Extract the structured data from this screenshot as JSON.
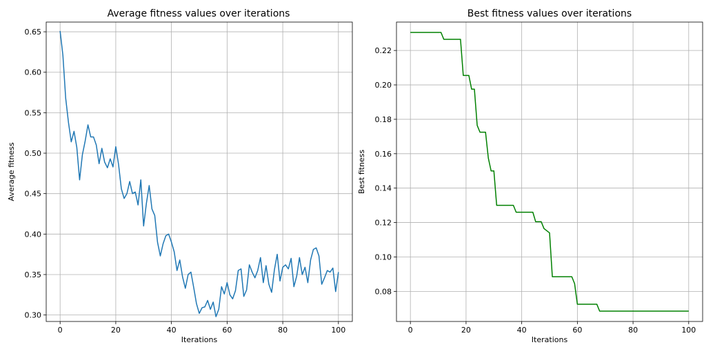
{
  "chart_data": [
    {
      "type": "line",
      "title": "Average fitness values over iterations",
      "xlabel": "Iterations",
      "ylabel": "Average fitness",
      "xlim": [
        -5,
        105
      ],
      "ylim": [
        0.292,
        0.662
      ],
      "xticks": [
        0,
        20,
        40,
        60,
        80,
        100
      ],
      "yticks": [
        0.3,
        0.35,
        0.4,
        0.45,
        0.5,
        0.55,
        0.6,
        0.65
      ],
      "grid": true,
      "color": "#1f77b4",
      "series": [
        {
          "x": [
            0,
            1,
            2,
            3,
            4,
            5,
            6,
            7,
            8,
            9,
            10,
            11,
            12,
            13,
            14,
            15,
            16,
            17,
            18,
            19,
            20,
            21,
            22,
            23,
            24,
            25,
            26,
            27,
            28,
            29,
            30,
            31,
            32,
            33,
            34,
            35,
            36,
            37,
            38,
            39,
            40,
            41,
            42,
            43,
            44,
            45,
            46,
            47,
            48,
            49,
            50,
            51,
            52,
            53,
            54,
            55,
            56,
            57,
            58,
            59,
            60,
            61,
            62,
            63,
            64,
            65,
            66,
            67,
            68,
            69,
            70,
            71,
            72,
            73,
            74,
            75,
            76,
            77,
            78,
            79,
            80,
            81,
            82,
            83,
            84,
            85,
            86,
            87,
            88,
            89,
            90,
            91,
            92,
            93,
            94,
            95,
            96,
            97,
            98,
            99,
            100
          ],
          "values": [
            0.651,
            0.621,
            0.568,
            0.538,
            0.514,
            0.527,
            0.507,
            0.467,
            0.498,
            0.515,
            0.535,
            0.52,
            0.52,
            0.51,
            0.487,
            0.506,
            0.489,
            0.482,
            0.493,
            0.483,
            0.508,
            0.486,
            0.456,
            0.444,
            0.45,
            0.465,
            0.45,
            0.452,
            0.436,
            0.467,
            0.41,
            0.438,
            0.46,
            0.431,
            0.423,
            0.39,
            0.373,
            0.388,
            0.398,
            0.4,
            0.39,
            0.378,
            0.355,
            0.368,
            0.347,
            0.333,
            0.35,
            0.353,
            0.334,
            0.314,
            0.302,
            0.309,
            0.31,
            0.318,
            0.307,
            0.316,
            0.298,
            0.307,
            0.335,
            0.326,
            0.34,
            0.325,
            0.32,
            0.33,
            0.355,
            0.357,
            0.323,
            0.331,
            0.362,
            0.353,
            0.346,
            0.355,
            0.371,
            0.34,
            0.361,
            0.338,
            0.328,
            0.356,
            0.375,
            0.342,
            0.359,
            0.362,
            0.357,
            0.37,
            0.335,
            0.348,
            0.371,
            0.35,
            0.359,
            0.34,
            0.368,
            0.381,
            0.383,
            0.373,
            0.338,
            0.346,
            0.355,
            0.353,
            0.358,
            0.329,
            0.353
          ]
        }
      ]
    },
    {
      "type": "line",
      "title": "Best fitness values over iterations",
      "xlabel": "Iterations",
      "ylabel": "Best fitness",
      "xlim": [
        -5,
        105
      ],
      "ylim": [
        0.0625,
        0.2365
      ],
      "xticks": [
        0,
        20,
        40,
        60,
        80,
        100
      ],
      "yticks": [
        0.08,
        0.1,
        0.12,
        0.14,
        0.16,
        0.18,
        0.2,
        0.22
      ],
      "grid": true,
      "color": "#008000",
      "series": [
        {
          "x": [
            0,
            11,
            12,
            18,
            19,
            21,
            22,
            23,
            24,
            25,
            27,
            28,
            29,
            30,
            31,
            37,
            38,
            44,
            45,
            47,
            48,
            50,
            51,
            58,
            59,
            60,
            67,
            68,
            100
          ],
          "values": [
            0.2305,
            0.2305,
            0.2265,
            0.2265,
            0.2055,
            0.2055,
            0.1975,
            0.1975,
            0.1765,
            0.1725,
            0.1725,
            0.1575,
            0.15,
            0.15,
            0.13,
            0.13,
            0.126,
            0.126,
            0.1205,
            0.1205,
            0.1165,
            0.114,
            0.0885,
            0.0885,
            0.0845,
            0.0725,
            0.0725,
            0.0685,
            0.0685
          ]
        }
      ]
    }
  ]
}
